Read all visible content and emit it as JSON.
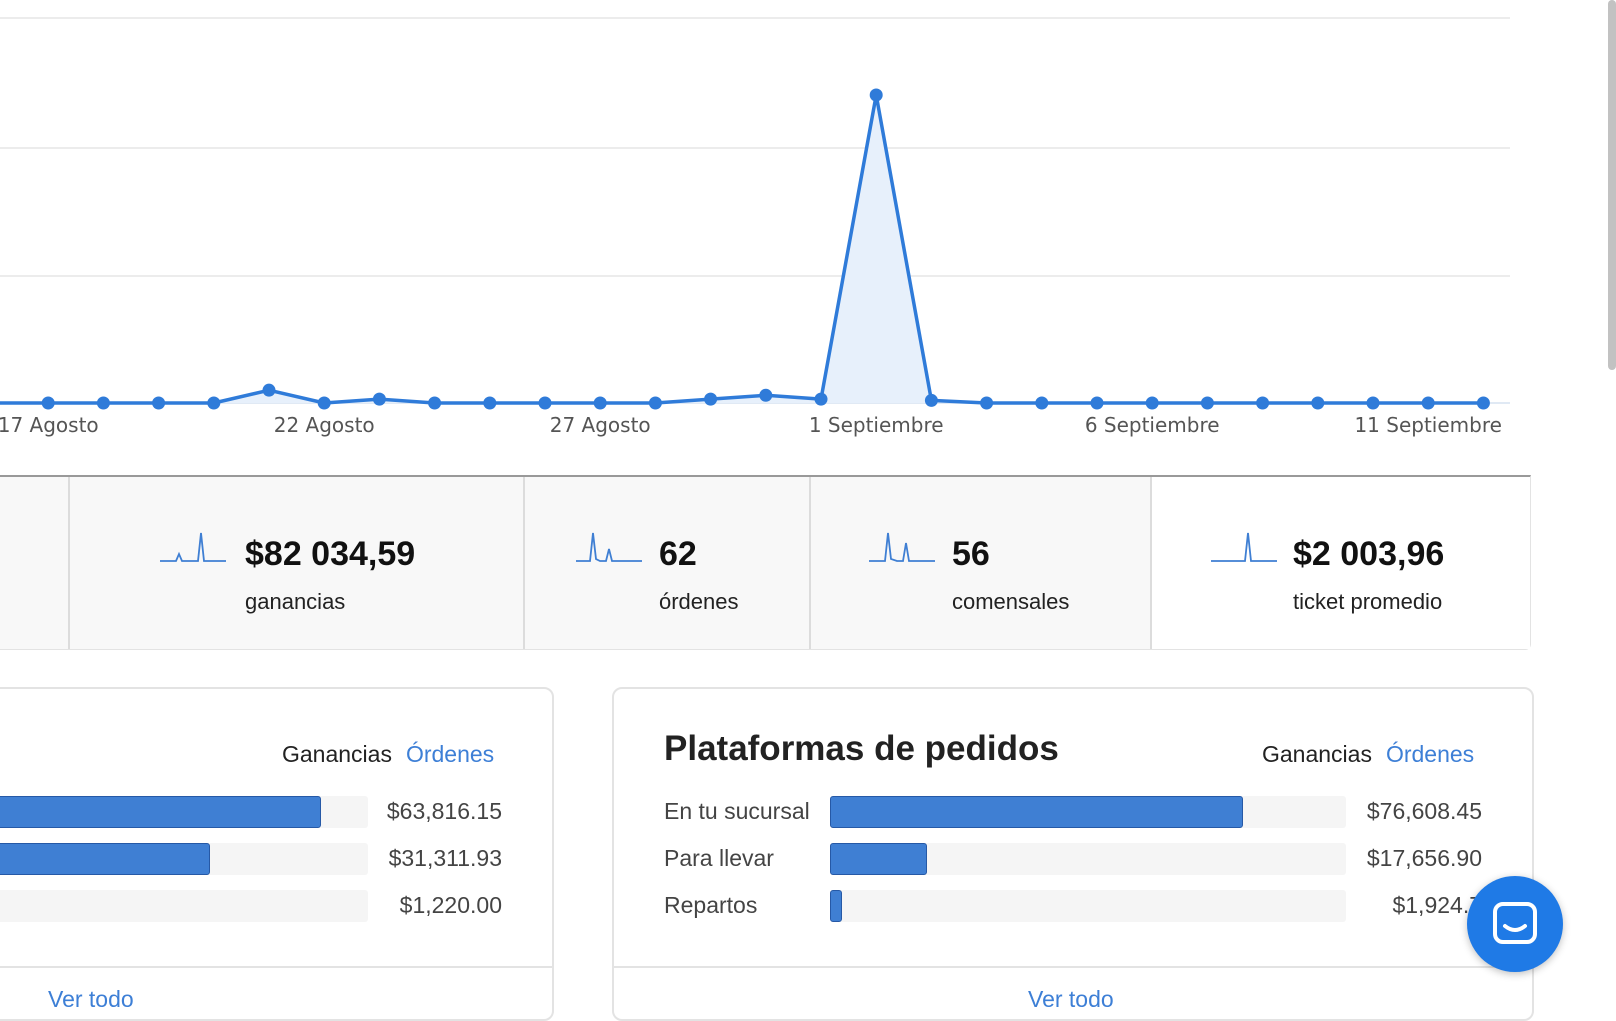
{
  "chart_data": {
    "type": "area",
    "x_ticks": [
      "17 Agosto",
      "22 Agosto",
      "27 Agosto",
      "1 Septiembre",
      "6 Septiembre",
      "11 Septiembre"
    ],
    "x": [
      "16 Agosto",
      "17 Agosto",
      "18 Agosto",
      "19 Agosto",
      "20 Agosto",
      "21 Agosto",
      "22 Agosto",
      "23 Agosto",
      "24 Agosto",
      "25 Agosto",
      "26 Agosto",
      "27 Agosto",
      "28 Agosto",
      "29 Agosto",
      "30 Agosto",
      "31 Agosto",
      "1 Septiembre",
      "2 Septiembre",
      "3 Septiembre",
      "4 Septiembre",
      "5 Septiembre",
      "6 Septiembre",
      "7 Septiembre",
      "8 Septiembre",
      "9 Septiembre",
      "10 Septiembre",
      "11 Septiembre",
      "12 Septiembre"
    ],
    "values": [
      0,
      0,
      0,
      0,
      0,
      1000,
      0,
      300,
      0,
      0,
      0,
      0,
      0,
      300,
      600,
      300,
      24000,
      200,
      0,
      0,
      0,
      0,
      0,
      0,
      0,
      0,
      0,
      0
    ],
    "ylim": [
      0,
      30000
    ],
    "grid": true,
    "color": "#2f7bd9",
    "fill_color": "#e7f0fb"
  },
  "metrics": [
    {
      "value": "",
      "label": ""
    },
    {
      "value": "$82 034,59",
      "label": "ganancias"
    },
    {
      "value": "62",
      "label": "órdenes"
    },
    {
      "value": "56",
      "label": "comensales"
    },
    {
      "value": "$2 003,96",
      "label": "ticket promedio"
    }
  ],
  "left_card": {
    "toggle_ganancias": "Ganancias",
    "toggle_ordenes": "Órdenes",
    "rows": [
      {
        "value": "$63,816.15",
        "fraction": 0.78
      },
      {
        "value": "$31,311.93",
        "fraction": 0.38
      },
      {
        "value": "$1,220.00",
        "fraction": 0.015
      }
    ],
    "ver_todo": "Ver todo"
  },
  "right_card": {
    "title": "Plataformas de pedidos",
    "toggle_ganancias": "Ganancias",
    "toggle_ordenes": "Órdenes",
    "rows": [
      {
        "label": "En tu sucursal",
        "value": "$76,608.45",
        "fraction": 0.797
      },
      {
        "label": "Para llevar",
        "value": "$17,656.90",
        "fraction": 0.184
      },
      {
        "label": "Repartos",
        "value": "$1,924.7",
        "fraction": 0.02
      }
    ],
    "ver_todo": "Ver todo"
  },
  "chat_icon": "chat-bubble-icon"
}
